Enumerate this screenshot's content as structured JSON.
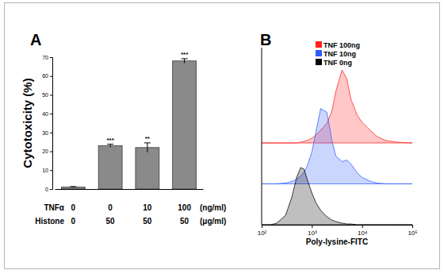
{
  "chart_data": [
    {
      "type": "bar",
      "title": "A",
      "y_label": "Cytotoxicity (%)",
      "categories": [
        null,
        null,
        null,
        null
      ],
      "values": [
        1,
        23,
        22,
        68
      ],
      "errors": [
        0.3,
        0.8,
        2.5,
        1.2
      ],
      "significance": [
        null,
        "***",
        "**",
        "***"
      ],
      "condition_rows": [
        {
          "label": "TNFα",
          "values": [
            0,
            0,
            10,
            100
          ],
          "unit": "(ng/ml)"
        },
        {
          "label": "Histone",
          "values": [
            0,
            50,
            50,
            50
          ],
          "unit": "(μg/ml)"
        }
      ],
      "color": "#8a8a8a",
      "ylim": [
        0,
        70
      ],
      "yticks": [
        0,
        10,
        20,
        30,
        40,
        50,
        60,
        70
      ],
      "grid": false
    },
    {
      "type": "area",
      "title": "B",
      "x_label": "Poly-lysine-FITC",
      "x": [
        100,
        150,
        200,
        300,
        400,
        500,
        600,
        700,
        800,
        1000,
        1200,
        1500,
        2000,
        2500,
        3000,
        4000,
        5000,
        6000,
        8000,
        10000,
        15000,
        20000,
        30000,
        50000,
        100000
      ],
      "series": [
        {
          "name": "TNF 100ng",
          "color": "#ff2020",
          "values": [
            0,
            0,
            0,
            0,
            0,
            0,
            1,
            2,
            3,
            6,
            10,
            16,
            25,
            40,
            65,
            92,
            80,
            55,
            35,
            26,
            15,
            8,
            3,
            1,
            0
          ]
        },
        {
          "name": "TNF 10ng",
          "color": "#2f5cff",
          "values": [
            0,
            0,
            0,
            1,
            3,
            6,
            10,
            15,
            22,
            40,
            65,
            95,
            90,
            55,
            35,
            28,
            30,
            25,
            14,
            8,
            3,
            1,
            0,
            0,
            0
          ]
        },
        {
          "name": "TNF 0ng",
          "color": "#000000",
          "values": [
            0,
            0,
            2,
            12,
            35,
            60,
            72,
            70,
            58,
            40,
            28,
            18,
            10,
            6,
            4,
            2,
            1,
            1,
            0,
            0,
            0,
            0,
            0,
            0,
            0
          ]
        }
      ],
      "log": "x",
      "xlim": [
        100,
        100000
      ],
      "xticks": [
        {
          "value": 100,
          "label": "10²"
        },
        {
          "value": 1000,
          "label": "10³"
        },
        {
          "value": 10000,
          "label": "10⁴"
        },
        {
          "value": 100000,
          "label": "10⁵"
        }
      ],
      "ylim": [
        0,
        100
      ],
      "tick_labels": "x",
      "legend": "top-right",
      "grid": false
    }
  ]
}
